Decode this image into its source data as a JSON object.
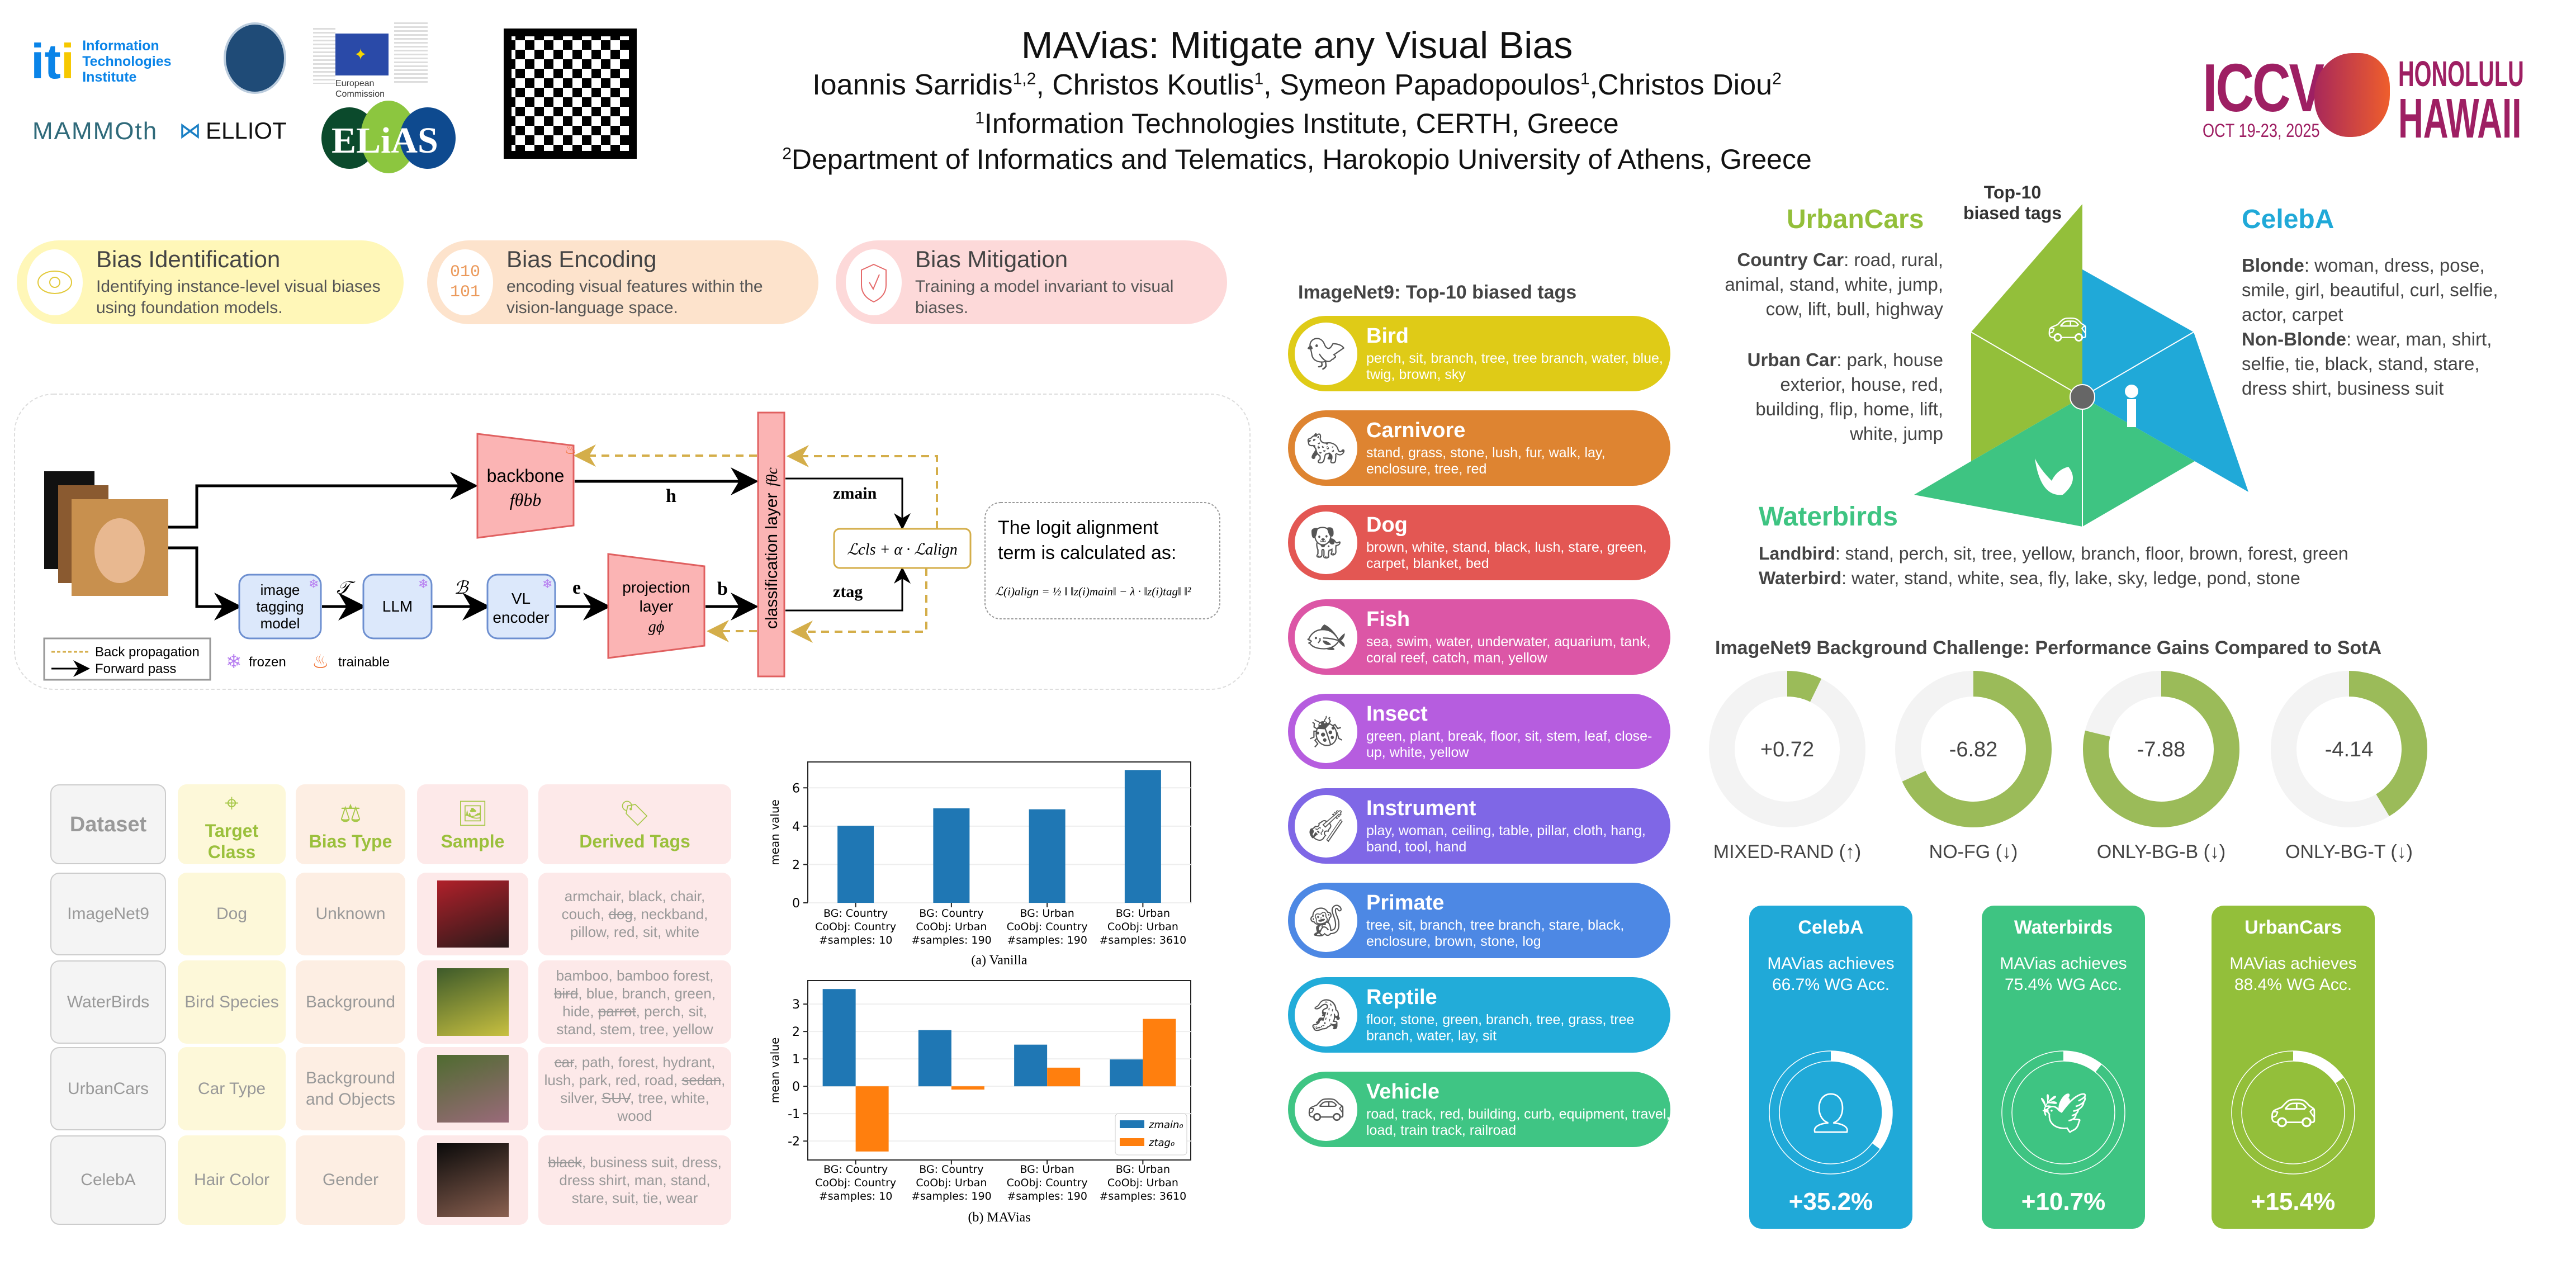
{
  "header": {
    "title": "MAVias: Mitigate any Visual Bias",
    "authors": [
      {
        "name": "Ioannis Sarridis",
        "sup": "1,2",
        "sep": ", "
      },
      {
        "name": "Christos Koutlis",
        "sup": "1",
        "sep": ", "
      },
      {
        "name": "Symeon Papadopoulos",
        "sup": "1",
        "sep": ","
      },
      {
        "name": "Christos Diou",
        "sup": "2",
        "sep": ""
      }
    ],
    "affiliations": [
      {
        "sup": "1",
        "text": "Information Technologies Institute, CERTH, Greece"
      },
      {
        "sup": "2",
        "text": "Department of Informatics and Telematics, Harokopio University of Athens, Greece"
      }
    ],
    "logos": {
      "iti": {
        "mark": "iti",
        "text": "Information Technologies Institute"
      },
      "eu": "European Commission",
      "mammoth": "MAMMOth",
      "elliot": "ELLIOT",
      "elias": "ELiAS"
    },
    "conference": {
      "name": "ICCV",
      "dates": "OCT 19-23, 2025",
      "city": "HONOLULU",
      "region": "HAWAII"
    }
  },
  "steps": [
    {
      "title": "Bias Identification",
      "desc": "Identifying instance-level visual biases using foundation models.",
      "icon": "eye-icon",
      "color": "#fff7b8"
    },
    {
      "title": "Bias Encoding",
      "desc": "encoding visual features within the vision-language space.",
      "icon": "binary-icon",
      "icon_text": "010 101",
      "color": "#fde3cc"
    },
    {
      "title": "Bias Mitigation",
      "desc": "Training a model invariant to visual biases.",
      "icon": "shield-check-icon",
      "color": "#fdd9d9"
    }
  ],
  "diagram": {
    "backbone": "backbone",
    "backbone_fn": "fθbb",
    "h": "h",
    "b": "b",
    "e": "e",
    "T": "𝒯",
    "B": "ℬ",
    "classification_layer": "classification layer",
    "fc": "fθc",
    "image_tagging": [
      "image",
      "tagging",
      "model"
    ],
    "llm": "LLM",
    "vl_encoder": [
      "VL",
      "encoder"
    ],
    "projection": [
      "projection",
      "layer",
      "gϕ"
    ],
    "z_main": "zmain",
    "z_tag": "ztag",
    "loss": "ℒcls + α · ℒalign",
    "logit_note": [
      "The logit alignment",
      "term is calculated as:"
    ],
    "logit_formula": "ℒ(i)align = ½ ‖ ‖z(i)main‖ − λ · ‖z(i)tag‖ ‖²",
    "legend": {
      "back": "Back propagation",
      "forward": "Forward pass",
      "frozen": "frozen",
      "trainable": "trainable"
    }
  },
  "table": {
    "headers": [
      "Dataset",
      "Target Class",
      "Bias Type",
      "Sample",
      "Derived Tags"
    ],
    "rows": [
      {
        "dataset": "ImageNet9",
        "target": "Dog",
        "bias": "Unknown",
        "sample_colors": [
          "#b0202a",
          "#2a1a1a"
        ],
        "tags": [
          {
            "t": "armchair"
          },
          {
            "t": "black"
          },
          {
            "t": "chair"
          },
          {
            "t": "couch"
          },
          {
            "t": "dog",
            "s": true
          },
          {
            "t": "neckband"
          },
          {
            "t": "pillow"
          },
          {
            "t": "red"
          },
          {
            "t": "sit"
          },
          {
            "t": "white"
          }
        ]
      },
      {
        "dataset": "WaterBirds",
        "target": "Bird Species",
        "bias": "Background",
        "sample_colors": [
          "#3d5a2a",
          "#c8c040"
        ],
        "tags": [
          {
            "t": "bamboo"
          },
          {
            "t": "bamboo forest"
          },
          {
            "t": "bird",
            "s": true
          },
          {
            "t": "blue"
          },
          {
            "t": "branch"
          },
          {
            "t": "green"
          },
          {
            "t": "hide"
          },
          {
            "t": "parrot",
            "s": true
          },
          {
            "t": "perch"
          },
          {
            "t": "sit"
          },
          {
            "t": "stand"
          },
          {
            "t": "stem"
          },
          {
            "t": "tree"
          },
          {
            "t": "yellow"
          }
        ]
      },
      {
        "dataset": "UrbanCars",
        "target": "Car Type",
        "bias": "Background and Objects",
        "sample_colors": [
          "#4f6b30",
          "#9a6a7a"
        ],
        "tags": [
          {
            "t": "car",
            "s": true
          },
          {
            "t": "path"
          },
          {
            "t": "forest"
          },
          {
            "t": "hydrant"
          },
          {
            "t": "lush"
          },
          {
            "t": "park"
          },
          {
            "t": "red"
          },
          {
            "t": "road"
          },
          {
            "t": "sedan",
            "s": true
          },
          {
            "t": "silver"
          },
          {
            "t": "SUV",
            "s": true
          },
          {
            "t": "tree"
          },
          {
            "t": "white"
          },
          {
            "t": "wood"
          }
        ]
      },
      {
        "dataset": "CelebA",
        "target": "Hair Color",
        "bias": "Gender",
        "sample_colors": [
          "#0a0a0a",
          "#8a6050"
        ],
        "tags": [
          {
            "t": "black",
            "s": true
          },
          {
            "t": "business suit"
          },
          {
            "t": "dress"
          },
          {
            "t": "dress shirt"
          },
          {
            "t": "man"
          },
          {
            "t": "stand"
          },
          {
            "t": "stare"
          },
          {
            "t": "suit"
          },
          {
            "t": "tie"
          },
          {
            "t": "wear"
          }
        ]
      }
    ]
  },
  "chart_data": [
    {
      "type": "bar",
      "title": "(a) Vanilla",
      "ylabel": "mean value",
      "xlabel": "",
      "categories": [
        "BG: Country|CoObj: Country|#samples: 10",
        "BG: Country|CoObj: Urban|#samples: 190",
        "BG: Urban|CoObj: Country|#samples: 190",
        "BG: Urban|CoObj: Urban|#samples: 3610"
      ],
      "series": [
        {
          "name": "z_main0",
          "color": "#1f77b4",
          "values": [
            4.02,
            4.93,
            4.88,
            6.93
          ]
        }
      ],
      "yticks": [
        0,
        2,
        4,
        6
      ],
      "ylim": [
        0,
        7.35
      ],
      "grid": true
    },
    {
      "type": "bar",
      "title": "(b) MAVias",
      "ylabel": "mean value",
      "xlabel": "",
      "categories": [
        "BG: Country|CoObj: Country|#samples: 10",
        "BG: Country|CoObj: Urban|#samples: 190",
        "BG: Urban|CoObj: Country|#samples: 190",
        "BG: Urban|CoObj: Urban|#samples: 3610"
      ],
      "series": [
        {
          "name": "z_main0",
          "label": "zmain₀",
          "color": "#1f77b4",
          "values": [
            3.55,
            2.05,
            1.52,
            0.98
          ]
        },
        {
          "name": "z_tag0",
          "label": "ztag₀",
          "color": "#ff7f0e",
          "values": [
            -2.38,
            -0.12,
            0.68,
            2.46
          ]
        }
      ],
      "yticks": [
        -2,
        -1,
        0,
        1,
        2,
        3
      ],
      "ylim": [
        -2.69,
        3.86
      ],
      "grid": true,
      "legend": "lower-right"
    }
  ],
  "imagenet9": {
    "title": "ImageNet9: Top-10 biased tags",
    "classes": [
      {
        "name": "Bird",
        "color": "#dfcb17",
        "icon": "bird-icon",
        "tags": "perch, sit, branch, tree, tree branch, water, blue, twig, brown, sky"
      },
      {
        "name": "Carnivore",
        "color": "#de8431",
        "icon": "carnivore-icon",
        "tags": "stand, grass, stone, lush, fur, walk, lay, enclosure, tree, red"
      },
      {
        "name": "Dog",
        "color": "#e35753",
        "icon": "dog-icon",
        "tags": "brown, white, stand, black, lush, stare, green, carpet, blanket, bed"
      },
      {
        "name": "Fish",
        "color": "#dc56a6",
        "icon": "fish-icon",
        "tags": "sea, swim, water, underwater, aquarium, tank, coral reef, catch, man, yellow"
      },
      {
        "name": "Insect",
        "color": "#b65ddf",
        "icon": "insect-icon",
        "tags": "green, plant, break, floor, sit, stem, leaf, close-up, white, yellow"
      },
      {
        "name": "Instrument",
        "color": "#7f67e6",
        "icon": "instrument-icon",
        "tags": "play, woman, ceiling, table, pillar, cloth, hang, band, tool, hand"
      },
      {
        "name": "Primate",
        "color": "#4d88e4",
        "icon": "primate-icon",
        "tags": "tree, sit, branch, tree branch, stare, black, enclosure, brown, stone, log"
      },
      {
        "name": "Reptile",
        "color": "#22acd9",
        "icon": "reptile-icon",
        "tags": "floor, stone, green, branch, tree, grass, tree branch, water, lay, sit"
      },
      {
        "name": "Vehicle",
        "color": "#3fc584",
        "icon": "vehicle-icon",
        "tags": "road, track, red, building, curb, equipment, travel, load, train track, railroad"
      }
    ]
  },
  "top10": {
    "title": "Top-10 biased tags",
    "urbancars": {
      "name": "UrbanCars",
      "color": "#93bf3a",
      "groups": [
        {
          "label": "Country Car",
          "tags": "road, rural, animal, stand, white, jump, cow, lift, bull, highway"
        },
        {
          "label": "Urban Car",
          "tags": "park, house exterior, house, red, building, flip, home, lift, white, jump"
        }
      ]
    },
    "celeba": {
      "name": "CelebA",
      "color": "#20a9d8",
      "groups": [
        {
          "label": "Blonde",
          "tags": "woman, dress, pose, smile, girl, beautiful, curl, selfie, actor, carpet"
        },
        {
          "label": "Non-Blonde",
          "tags": "wear, man, shirt, selfie, tie, black, stand, stare, dress shirt, business suit"
        }
      ]
    },
    "waterbirds": {
      "name": "Waterbirds",
      "color": "#3ec482",
      "groups": [
        {
          "label": "Landbird",
          "tags": "stand, perch, sit, tree, yellow, branch, floor, brown, forest, green"
        },
        {
          "label": "Waterbird",
          "tags": "water, stand, white, sea, fly, lake, sky, ledge, pond, stone"
        }
      ]
    }
  },
  "bg_challenge": {
    "title": "ImageNet9 Background Challenge: Performance Gains Compared to SotA",
    "fill_color": "#9bbb59",
    "track_color": "#f3f3f3",
    "items": [
      {
        "label": "MIXED-RAND (↑)",
        "value": "+0.72",
        "fill_percent": 7.2
      },
      {
        "label": "NO-FG (↓)",
        "value": "-6.82",
        "fill_percent": 68.2
      },
      {
        "label": "ONLY-BG-B (↓)",
        "value": "-7.88",
        "fill_percent": 78.8
      },
      {
        "label": "ONLY-BG-T (↓)",
        "value": "-4.14",
        "fill_percent": 41.4
      }
    ]
  },
  "results": [
    {
      "name": "CelebA",
      "desc1": "MAVias achieves",
      "desc2": "66.7% WG Acc.",
      "gain": "+35.2%",
      "gain_percent": 35.2,
      "color": "#20a9d8",
      "icon": "person-icon"
    },
    {
      "name": "Waterbirds",
      "desc1": "MAVias achieves",
      "desc2": "75.4% WG Acc.",
      "gain": "+10.7%",
      "gain_percent": 10.7,
      "color": "#3ec482",
      "icon": "bird-icon"
    },
    {
      "name": "UrbanCars",
      "desc1": "MAVias achieves",
      "desc2": "88.4% WG Acc.",
      "gain": "+15.4%",
      "gain_percent": 15.4,
      "color": "#93bf3a",
      "icon": "car-icon"
    }
  ]
}
